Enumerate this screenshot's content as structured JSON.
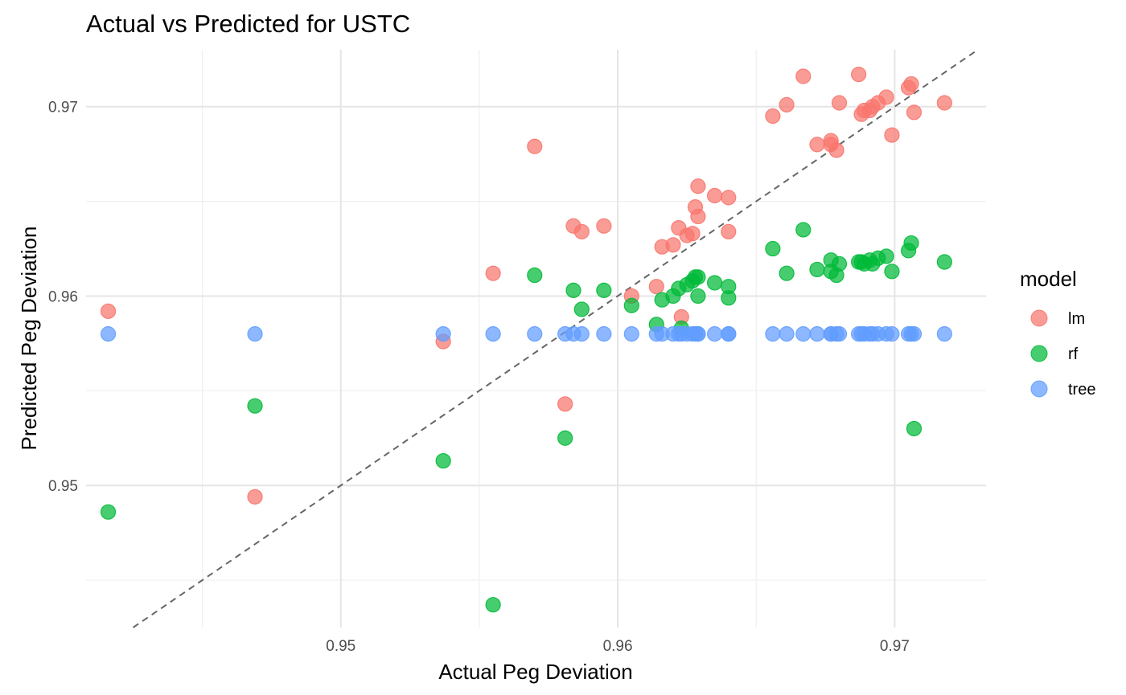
{
  "chart_data": {
    "type": "scatter",
    "title": "Actual vs Predicted for USTC",
    "xlabel": "Actual Peg Deviation",
    "ylabel": "Predicted Peg Deviation",
    "xlim": [
      0.9408,
      0.9733
    ],
    "ylim": [
      0.9425,
      0.973
    ],
    "x_ticks": [
      0.95,
      0.96,
      0.97
    ],
    "x_tick_labels": [
      "0.95",
      "0.96",
      "0.97"
    ],
    "y_ticks": [
      0.95,
      0.96,
      0.97
    ],
    "y_tick_labels": [
      "0.95",
      "0.96",
      "0.97"
    ],
    "x_minor_ticks": [
      0.945,
      0.955,
      0.965
    ],
    "y_minor_ticks": [
      0.945,
      0.955,
      0.965
    ],
    "grid": true,
    "reference_line": "y = x (dashed)",
    "legend": {
      "title": "model",
      "position": "right"
    },
    "series": [
      {
        "name": "lm",
        "color": "#F8766D",
        "points": [
          [
            0.9416,
            0.9592
          ],
          [
            0.9469,
            0.9494
          ],
          [
            0.9537,
            0.9576
          ],
          [
            0.9555,
            0.9612
          ],
          [
            0.957,
            0.9679
          ],
          [
            0.9581,
            0.9543
          ],
          [
            0.9584,
            0.9637
          ],
          [
            0.9587,
            0.9634
          ],
          [
            0.9595,
            0.9637
          ],
          [
            0.9605,
            0.96
          ],
          [
            0.9614,
            0.9605
          ],
          [
            0.9616,
            0.9626
          ],
          [
            0.962,
            0.9627
          ],
          [
            0.9622,
            0.9636
          ],
          [
            0.9623,
            0.9589
          ],
          [
            0.9625,
            0.9632
          ],
          [
            0.9627,
            0.9633
          ],
          [
            0.9628,
            0.9647
          ],
          [
            0.9629,
            0.9642
          ],
          [
            0.9629,
            0.9658
          ],
          [
            0.9635,
            0.9653
          ],
          [
            0.964,
            0.9634
          ],
          [
            0.964,
            0.9652
          ],
          [
            0.9656,
            0.9695
          ],
          [
            0.9661,
            0.9701
          ],
          [
            0.9667,
            0.9716
          ],
          [
            0.9672,
            0.968
          ],
          [
            0.9677,
            0.968
          ],
          [
            0.9677,
            0.9682
          ],
          [
            0.9679,
            0.9677
          ],
          [
            0.968,
            0.9702
          ],
          [
            0.9687,
            0.9717
          ],
          [
            0.9688,
            0.9696
          ],
          [
            0.9689,
            0.9698
          ],
          [
            0.9691,
            0.9698
          ],
          [
            0.9692,
            0.97
          ],
          [
            0.9694,
            0.9702
          ],
          [
            0.9697,
            0.9705
          ],
          [
            0.9699,
            0.9685
          ],
          [
            0.9705,
            0.971
          ],
          [
            0.9706,
            0.9712
          ],
          [
            0.9707,
            0.9697
          ],
          [
            0.9718,
            0.9702
          ]
        ]
      },
      {
        "name": "rf",
        "color": "#00BA38",
        "points": [
          [
            0.9416,
            0.9486
          ],
          [
            0.9469,
            0.9542
          ],
          [
            0.9537,
            0.9513
          ],
          [
            0.9555,
            0.9437
          ],
          [
            0.957,
            0.9611
          ],
          [
            0.9581,
            0.9525
          ],
          [
            0.9584,
            0.9603
          ],
          [
            0.9587,
            0.9593
          ],
          [
            0.9595,
            0.9603
          ],
          [
            0.9605,
            0.9595
          ],
          [
            0.9614,
            0.9585
          ],
          [
            0.9616,
            0.9598
          ],
          [
            0.962,
            0.96
          ],
          [
            0.9622,
            0.9604
          ],
          [
            0.9623,
            0.9583
          ],
          [
            0.9625,
            0.9606
          ],
          [
            0.9627,
            0.9608
          ],
          [
            0.9628,
            0.961
          ],
          [
            0.9629,
            0.961
          ],
          [
            0.9629,
            0.96
          ],
          [
            0.9635,
            0.9607
          ],
          [
            0.964,
            0.9599
          ],
          [
            0.964,
            0.9605
          ],
          [
            0.9656,
            0.9625
          ],
          [
            0.9661,
            0.9612
          ],
          [
            0.9667,
            0.9635
          ],
          [
            0.9672,
            0.9614
          ],
          [
            0.9677,
            0.9619
          ],
          [
            0.9677,
            0.9613
          ],
          [
            0.9679,
            0.9611
          ],
          [
            0.968,
            0.9617
          ],
          [
            0.9687,
            0.9618
          ],
          [
            0.9688,
            0.9618
          ],
          [
            0.9689,
            0.9617
          ],
          [
            0.9691,
            0.9619
          ],
          [
            0.9692,
            0.9617
          ],
          [
            0.9694,
            0.962
          ],
          [
            0.9697,
            0.9621
          ],
          [
            0.9699,
            0.9613
          ],
          [
            0.9705,
            0.9624
          ],
          [
            0.9706,
            0.9628
          ],
          [
            0.9707,
            0.953
          ],
          [
            0.9718,
            0.9618
          ]
        ]
      },
      {
        "name": "tree",
        "color": "#619CFF",
        "points": [
          [
            0.9416,
            0.958
          ],
          [
            0.9469,
            0.958
          ],
          [
            0.9537,
            0.958
          ],
          [
            0.9555,
            0.958
          ],
          [
            0.957,
            0.958
          ],
          [
            0.9581,
            0.958
          ],
          [
            0.9584,
            0.958
          ],
          [
            0.9587,
            0.958
          ],
          [
            0.9595,
            0.958
          ],
          [
            0.9605,
            0.958
          ],
          [
            0.9614,
            0.958
          ],
          [
            0.9616,
            0.958
          ],
          [
            0.962,
            0.958
          ],
          [
            0.9622,
            0.958
          ],
          [
            0.9623,
            0.958
          ],
          [
            0.9625,
            0.958
          ],
          [
            0.9627,
            0.958
          ],
          [
            0.9628,
            0.958
          ],
          [
            0.9629,
            0.958
          ],
          [
            0.9629,
            0.958
          ],
          [
            0.9635,
            0.958
          ],
          [
            0.964,
            0.958
          ],
          [
            0.964,
            0.958
          ],
          [
            0.9656,
            0.958
          ],
          [
            0.9661,
            0.958
          ],
          [
            0.9667,
            0.958
          ],
          [
            0.9672,
            0.958
          ],
          [
            0.9677,
            0.958
          ],
          [
            0.9677,
            0.958
          ],
          [
            0.9679,
            0.958
          ],
          [
            0.968,
            0.958
          ],
          [
            0.9687,
            0.958
          ],
          [
            0.9688,
            0.958
          ],
          [
            0.9689,
            0.958
          ],
          [
            0.9691,
            0.958
          ],
          [
            0.9692,
            0.958
          ],
          [
            0.9694,
            0.958
          ],
          [
            0.9697,
            0.958
          ],
          [
            0.9699,
            0.958
          ],
          [
            0.9705,
            0.958
          ],
          [
            0.9706,
            0.958
          ],
          [
            0.9707,
            0.958
          ],
          [
            0.9718,
            0.958
          ]
        ]
      }
    ]
  }
}
